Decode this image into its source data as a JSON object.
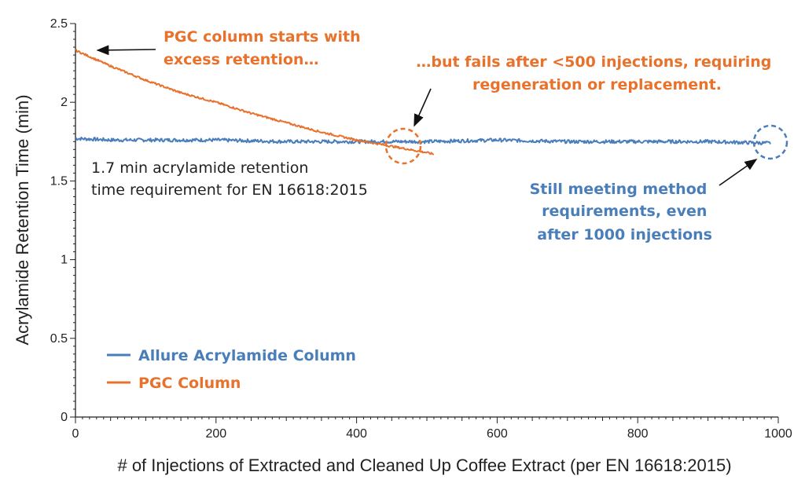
{
  "chart_data": {
    "type": "line",
    "title": "",
    "xlabel": "# of Injections of Extracted and Cleaned Up Coffee Extract (per EN 16618:2015)",
    "ylabel": "Acrylamide Retention Time (min)",
    "xlim": [
      0,
      1000
    ],
    "ylim": [
      0,
      2.5
    ],
    "xticks": [
      "0",
      "200",
      "400",
      "600",
      "800",
      "1000"
    ],
    "yticks": [
      "0",
      "0.5",
      "1",
      "1.5",
      "2",
      "2.5"
    ],
    "grid": false,
    "legend_position": "bottom-left",
    "series": [
      {
        "name": "Allure Acrylamide Column",
        "color": "#4a7ebb",
        "x": [
          0,
          50,
          100,
          200,
          300,
          400,
          500,
          600,
          700,
          800,
          900,
          990
        ],
        "y": [
          1.77,
          1.76,
          1.76,
          1.76,
          1.75,
          1.75,
          1.75,
          1.76,
          1.75,
          1.75,
          1.75,
          1.74
        ]
      },
      {
        "name": "PGC Column",
        "color": "#e8722c",
        "x": [
          0,
          50,
          100,
          150,
          200,
          250,
          300,
          350,
          400,
          450,
          500,
          510
        ],
        "y": [
          2.33,
          2.23,
          2.14,
          2.06,
          2.0,
          1.93,
          1.87,
          1.81,
          1.76,
          1.72,
          1.68,
          1.67
        ]
      }
    ],
    "annotations": {
      "pgc_start": [
        "PGC column starts with",
        "excess retention…"
      ],
      "pgc_fail": [
        "…but fails after <500 injections, requiring",
        "regeneration or replacement."
      ],
      "requirement": [
        "1.7 min acrylamide retention",
        "time requirement for EN 16618:2015"
      ],
      "allure_still": [
        "Still meeting method",
        "requirements, even",
        "after 1000 injections"
      ]
    }
  }
}
